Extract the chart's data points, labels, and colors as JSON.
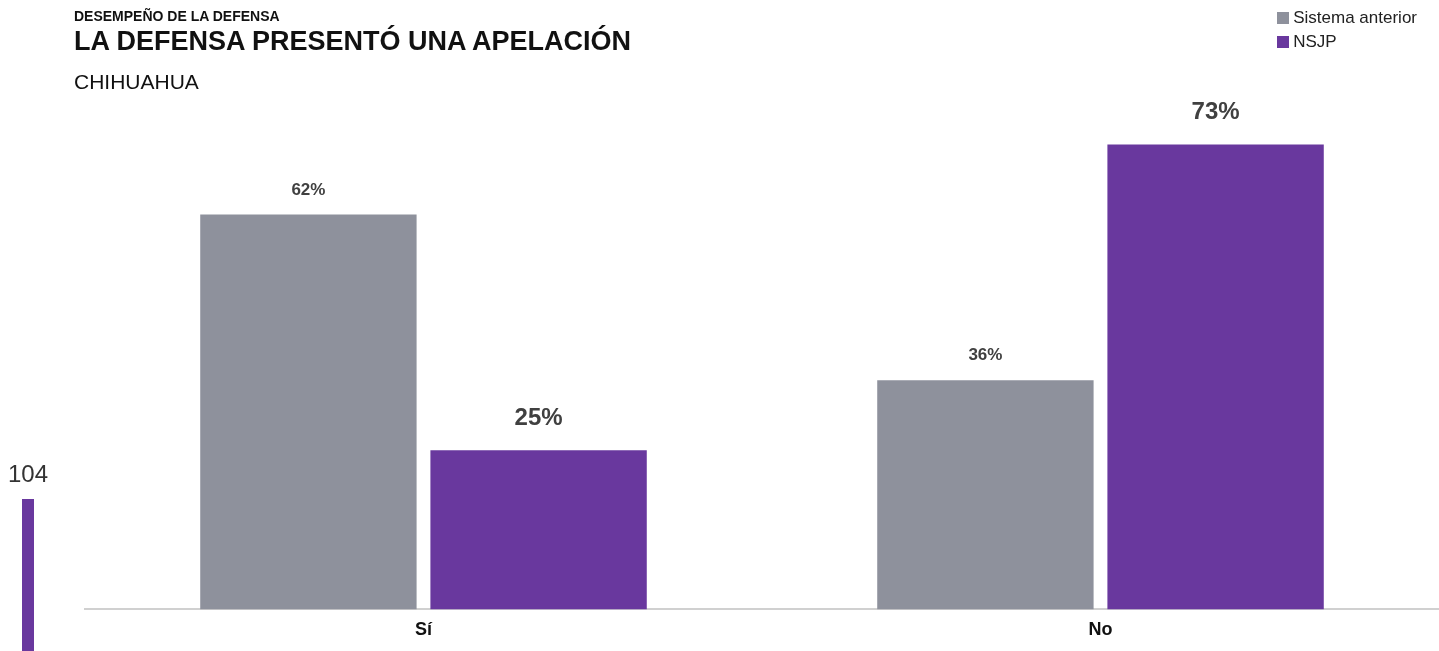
{
  "chart_data": {
    "type": "bar",
    "title": "LA DEFENSA PRESENTÓ UNA APELACIÓN",
    "subtitle": "CHIHUAHUA",
    "annotations": [
      "DESEMPEÑO DE LA DEFENSA",
      "104"
    ],
    "categories": [
      "Sí",
      "No"
    ],
    "series": [
      {
        "name": "Sistema anterior",
        "color": "#8e919c",
        "values": [
          62,
          36
        ],
        "value_labels": [
          "62%",
          "36%"
        ]
      },
      {
        "name": "NSJP",
        "color": "#69389e",
        "values": [
          25,
          73
        ],
        "value_labels": [
          "25%",
          "73%"
        ]
      }
    ],
    "grid": false,
    "legend": "top right"
  }
}
